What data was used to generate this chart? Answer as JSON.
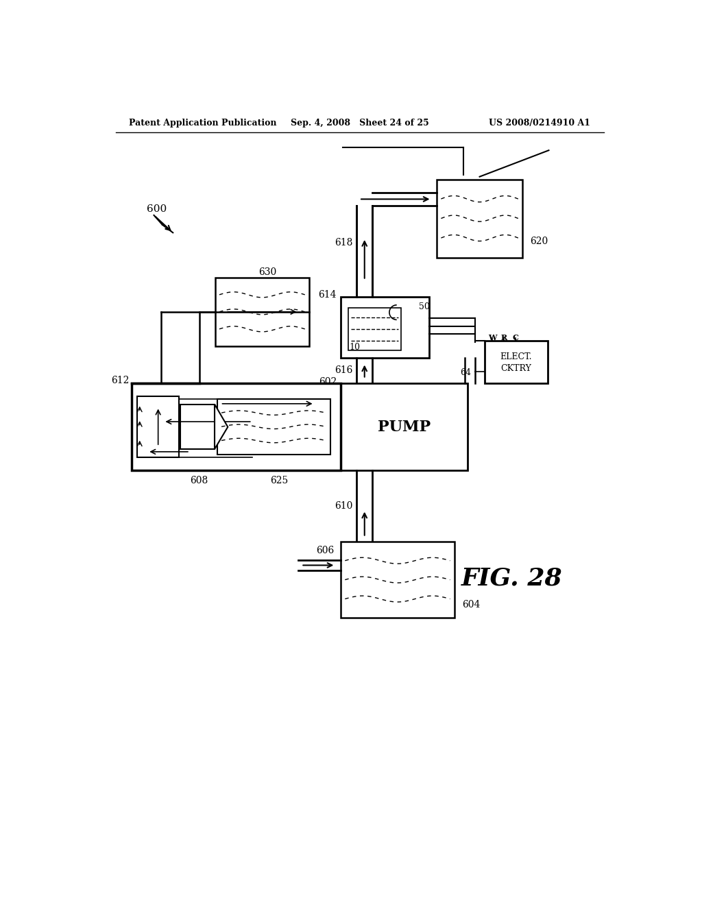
{
  "header_left": "Patent Application Publication",
  "header_center": "Sep. 4, 2008   Sheet 24 of 25",
  "header_right": "US 2008/0214910 A1",
  "figure_label": "FIG. 28",
  "bg_color": "#ffffff"
}
